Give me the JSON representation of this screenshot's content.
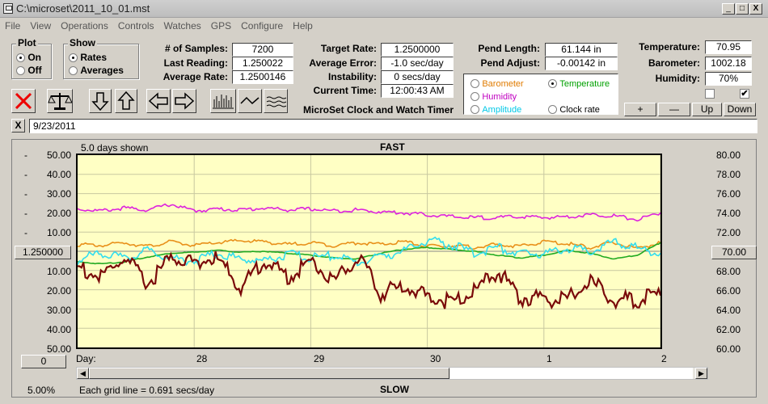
{
  "window": {
    "title": "C:\\microset\\2011_10_01.mst",
    "minimize": "_",
    "maximize": "□",
    "close": "X"
  },
  "menu": [
    "File",
    "View",
    "Operations",
    "Controls",
    "Watches",
    "GPS",
    "Configure",
    "Help"
  ],
  "plot_group": {
    "title": "Plot",
    "options": [
      "On",
      "Off"
    ],
    "selected": "On"
  },
  "show_group": {
    "title": "Show",
    "options": [
      "Rates",
      "Averages"
    ],
    "selected": "Rates"
  },
  "stats": {
    "samples_label": "# of Samples:",
    "samples": "7200",
    "last_label": "Last Reading:",
    "last": "1.250022",
    "avg_label": "Average Rate:",
    "avg": "1.2500146"
  },
  "target": {
    "rate_label": "Target Rate:",
    "rate": "1.2500000",
    "error_label": "Average Error:",
    "error": "-1.0 sec/day",
    "instab_label": "Instability:",
    "instab": "0 secs/day",
    "time_label": "Current Time:",
    "time": "12:00:43 AM"
  },
  "app_name": "MicroSet Clock and Watch Timer",
  "pend": {
    "length_label": "Pend Length:",
    "length": "61.144 in",
    "adjust_label": "Pend Adjust:",
    "adjust": "-0.00142 in"
  },
  "sensor_select": {
    "barometer": "Barometer",
    "temperature": "Temperature",
    "humidity": "Humidity",
    "amplitude": "Amplitude",
    "clockrate": "Clock rate",
    "selected": "Temperature",
    "colors": {
      "barometer": "#e07b00",
      "temperature": "#00a000",
      "humidity": "#c000c0",
      "amplitude": "#00c8e6",
      "clockrate": "#000000"
    }
  },
  "env": {
    "temp_label": "Temperature:",
    "temp": "70.95",
    "baro_label": "Barometer:",
    "baro": "1002.18",
    "hum_label": "Humidity:",
    "hum": "70%",
    "check1": false,
    "check2": true
  },
  "scale_buttons": {
    "plus": "+",
    "minus": "—",
    "up": "Up",
    "down": "Down"
  },
  "note": {
    "close": "X",
    "date": "9/23/2011"
  },
  "chart_data": {
    "type": "line",
    "title": "FAST",
    "bottom_title": "SLOW",
    "days_shown": "5.0 days shown",
    "left_axis_center": "1.250000",
    "right_axis_center": "70.00",
    "left_ticks": [
      "50.00",
      "40.00",
      "30.00",
      "20.00",
      "10.00",
      "",
      "10.00",
      "20.00",
      "30.00",
      "40.00",
      "50.00"
    ],
    "left_signs": [
      "-",
      "-",
      "-",
      "-",
      "-",
      "",
      "",
      "",
      "",
      "",
      ""
    ],
    "right_ticks": [
      "80.00",
      "78.00",
      "76.00",
      "74.00",
      "72.00",
      "70.00",
      "68.00",
      "66.00",
      "64.00",
      "62.00",
      "60.00"
    ],
    "xlabel": "Day:",
    "x_ticks": [
      "28",
      "29",
      "30",
      "1",
      "2"
    ],
    "ylim_left": [
      -50,
      50
    ],
    "ylim_right": [
      60,
      80
    ],
    "grid": true,
    "zoom": "5.00%",
    "grid_label": "Each grid line = 0.691 secs/day",
    "left_zero_button": "0",
    "series": [
      {
        "name": "Humidity",
        "color": "#dd22dd",
        "x": [
          0,
          0.2,
          0.4,
          0.6,
          0.8,
          1.0,
          1.2,
          1.4,
          1.6,
          1.8,
          2.0,
          2.2,
          2.4,
          2.6,
          2.8,
          3.0,
          3.2,
          3.4,
          3.6,
          3.8,
          4.0,
          4.2,
          4.4,
          4.6,
          4.8,
          5.0
        ],
        "values": [
          74.4,
          74.2,
          74.5,
          74.3,
          74.9,
          74.2,
          74.4,
          74.3,
          74.5,
          74.3,
          74.4,
          74.2,
          74.3,
          74.1,
          74.0,
          73.8,
          73.6,
          73.5,
          73.5,
          73.6,
          73.5,
          73.6,
          73.8,
          73.7,
          73.3,
          74.0
        ]
      },
      {
        "name": "Barometer",
        "color": "#e8901a",
        "x": [
          0,
          0.2,
          0.4,
          0.6,
          0.8,
          1.0,
          1.2,
          1.4,
          1.6,
          1.8,
          2.0,
          2.2,
          2.4,
          2.6,
          2.8,
          3.0,
          3.2,
          3.4,
          3.6,
          3.8,
          4.0,
          4.2,
          4.4,
          4.6,
          4.8,
          5.0
        ],
        "values": [
          70.7,
          70.6,
          70.9,
          70.5,
          71.0,
          70.6,
          70.9,
          71.1,
          71.0,
          70.7,
          70.9,
          70.6,
          70.9,
          70.7,
          71.0,
          70.5,
          70.6,
          70.4,
          70.7,
          70.5,
          71.0,
          70.8,
          70.4,
          70.9,
          70.3,
          70.9
        ]
      },
      {
        "name": "Temperature",
        "color": "#22aa22",
        "x": [
          0,
          0.2,
          0.4,
          0.6,
          0.8,
          1.0,
          1.2,
          1.4,
          1.6,
          1.8,
          2.0,
          2.2,
          2.4,
          2.6,
          2.8,
          3.0,
          3.2,
          3.4,
          3.6,
          3.8,
          4.0,
          4.2,
          4.4,
          4.6,
          4.8,
          5.0
        ],
        "values": [
          68.9,
          68.7,
          68.9,
          69.4,
          69.8,
          69.9,
          70.1,
          69.9,
          70.0,
          69.8,
          69.6,
          69.3,
          69.2,
          69.8,
          70.2,
          70.4,
          70.2,
          70.0,
          69.6,
          69.3,
          69.6,
          70.1,
          69.8,
          69.2,
          69.6,
          70.9
        ]
      },
      {
        "name": "Amplitude",
        "color": "#33ddee",
        "x": [
          0,
          0.2,
          0.4,
          0.6,
          0.8,
          1.0,
          1.2,
          1.4,
          1.6,
          1.8,
          2.0,
          2.2,
          2.4,
          2.6,
          2.8,
          3.0,
          3.2,
          3.4,
          3.6,
          3.8,
          4.0,
          4.2,
          4.4,
          4.6,
          4.8,
          5.0
        ],
        "values": [
          69.0,
          69.9,
          69.2,
          70.1,
          69.3,
          69.0,
          69.8,
          69.2,
          69.0,
          69.7,
          69.3,
          69.6,
          68.8,
          69.5,
          70.0,
          71.1,
          70.7,
          69.8,
          70.4,
          69.7,
          69.8,
          70.3,
          70.0,
          71.0,
          70.3,
          69.8
        ]
      },
      {
        "name": "Clock rate",
        "color": "#7a0a0a",
        "x": [
          0,
          0.2,
          0.4,
          0.6,
          0.8,
          1.0,
          1.2,
          1.4,
          1.6,
          1.8,
          2.0,
          2.2,
          2.4,
          2.6,
          2.8,
          3.0,
          3.2,
          3.4,
          3.6,
          3.8,
          4.0,
          4.2,
          4.4,
          4.6,
          4.8,
          5.0
        ],
        "values": [
          68.4,
          67.2,
          69.3,
          66.6,
          69.3,
          68.9,
          69.2,
          66.2,
          69.1,
          67.3,
          69.0,
          66.9,
          69.4,
          65.6,
          66.4,
          65.3,
          64.8,
          65.7,
          67.9,
          65.2,
          65.0,
          64.9,
          66.9,
          64.9,
          65.0,
          65.4
        ]
      }
    ]
  }
}
